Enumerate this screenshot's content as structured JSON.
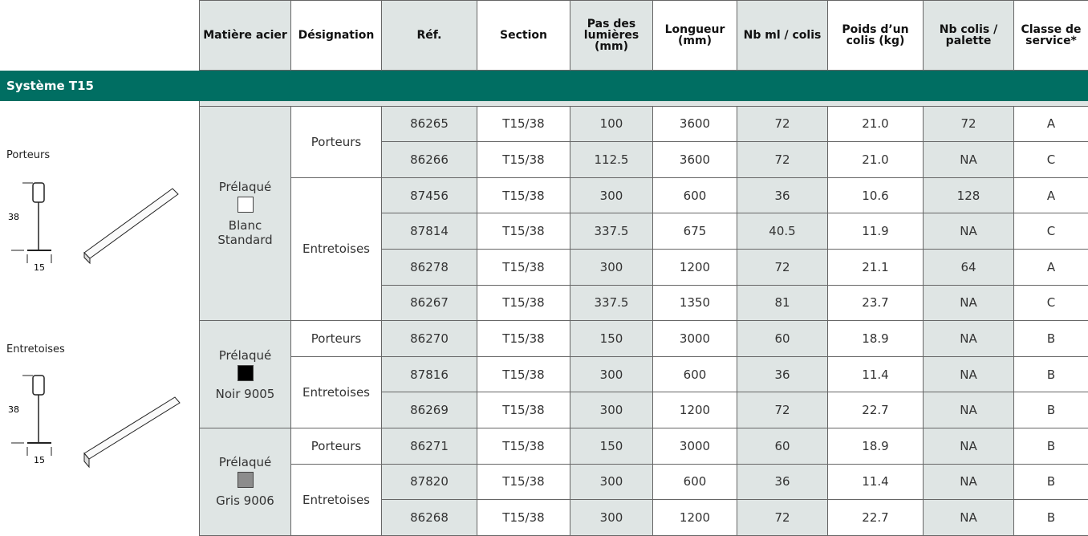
{
  "left_panel": {
    "porteurs": {
      "label": "Porteurs",
      "height": "38",
      "width": "15"
    },
    "entretoises": {
      "label": "Entretoises",
      "height": "38",
      "width": "15"
    }
  },
  "columns": [
    "Matière acier",
    "Désignation",
    "Réf.",
    "Section",
    "Pas des lumières (mm)",
    "Longueur (mm)",
    "Nb ml / colis",
    "Poids d’un colis (kg)",
    "Nb colis / palette",
    "Classe de service*"
  ],
  "section": "Système T15",
  "materials": [
    {
      "name": "Prélaqué",
      "color_name": "Blanc Standard",
      "swatch": "#ffffff",
      "groups": [
        {
          "designation": "Porteurs",
          "rows": [
            [
              "86265",
              "T15/38",
              "100",
              "3600",
              "72",
              "21.0",
              "72",
              "A"
            ],
            [
              "86266",
              "T15/38",
              "112.5",
              "3600",
              "72",
              "21.0",
              "NA",
              "C"
            ]
          ]
        },
        {
          "designation": "Entretoises",
          "rows": [
            [
              "87456",
              "T15/38",
              "300",
              "600",
              "36",
              "10.6",
              "128",
              "A"
            ],
            [
              "87814",
              "T15/38",
              "337.5",
              "675",
              "40.5",
              "11.9",
              "NA",
              "C"
            ],
            [
              "86278",
              "T15/38",
              "300",
              "1200",
              "72",
              "21.1",
              "64",
              "A"
            ],
            [
              "86267",
              "T15/38",
              "337.5",
              "1350",
              "81",
              "23.7",
              "NA",
              "C"
            ]
          ]
        }
      ]
    },
    {
      "name": "Prélaqué",
      "color_name": "Noir 9005",
      "swatch": "#000000",
      "groups": [
        {
          "designation": "Porteurs",
          "rows": [
            [
              "86270",
              "T15/38",
              "150",
              "3000",
              "60",
              "18.9",
              "NA",
              "B"
            ]
          ]
        },
        {
          "designation": "Entretoises",
          "rows": [
            [
              "87816",
              "T15/38",
              "300",
              "600",
              "36",
              "11.4",
              "NA",
              "B"
            ],
            [
              "86269",
              "T15/38",
              "300",
              "1200",
              "72",
              "22.7",
              "NA",
              "B"
            ]
          ]
        }
      ]
    },
    {
      "name": "Prélaqué",
      "color_name": "Gris 9006",
      "swatch": "#8c8c8c",
      "groups": [
        {
          "designation": "Porteurs",
          "rows": [
            [
              "86271",
              "T15/38",
              "150",
              "3000",
              "60",
              "18.9",
              "NA",
              "B"
            ]
          ]
        },
        {
          "designation": "Entretoises",
          "rows": [
            [
              "87820",
              "T15/38",
              "300",
              "600",
              "36",
              "11.4",
              "NA",
              "B"
            ],
            [
              "86268",
              "T15/38",
              "300",
              "1200",
              "72",
              "22.7",
              "NA",
              "B"
            ]
          ]
        }
      ]
    }
  ]
}
